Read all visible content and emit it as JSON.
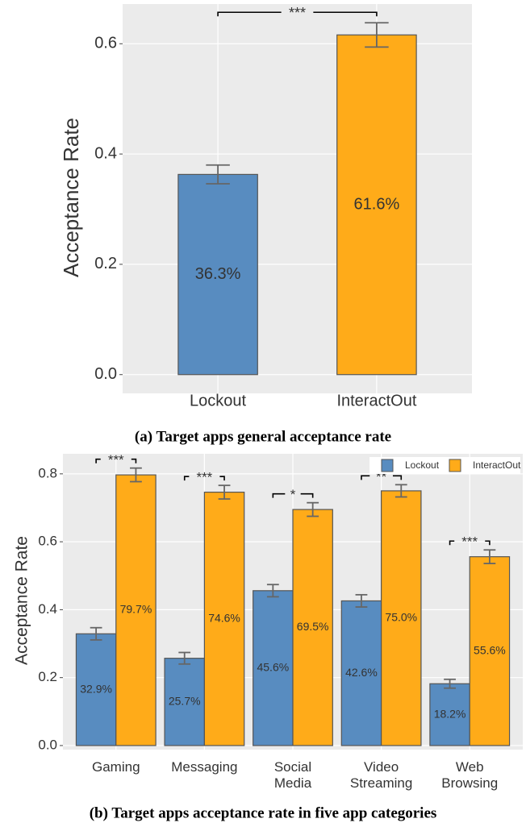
{
  "chart_data": [
    {
      "type": "bar",
      "title": "(a) Target apps general acceptance rate",
      "y_label": "Acceptance Rate",
      "categories": [
        "Lockout",
        "InteractOut"
      ],
      "values": [
        0.363,
        0.616
      ],
      "errors": [
        0.017,
        0.022
      ],
      "value_labels": [
        "36.3%",
        "61.6%"
      ],
      "colors": [
        "#588cc0",
        "#ffab19"
      ],
      "ylim": [
        -0.034,
        0.672
      ],
      "yticks": [
        {
          "value": 0,
          "label": "0.0"
        },
        0.2,
        0.4,
        0.6
      ],
      "significance": [
        "***"
      ],
      "grid": true
    },
    {
      "type": "grouped_bar",
      "title": "(b) Target apps acceptance rate in five app categories",
      "y_label": "Acceptance Rate",
      "categories": [
        "Gaming",
        "Messaging",
        "Social Media",
        "Video Streaming",
        "Web Browsing"
      ],
      "series": [
        {
          "name": "Lockout",
          "color": "#588cc0",
          "values": [
            0.329,
            0.257,
            0.456,
            0.426,
            0.182
          ],
          "errors": [
            0.018,
            0.017,
            0.018,
            0.018,
            0.013
          ],
          "value_labels": [
            "32.9%",
            "25.7%",
            "45.6%",
            "42.6%",
            "18.2%"
          ]
        },
        {
          "name": "InteractOut",
          "color": "#ffab19",
          "values": [
            0.797,
            0.746,
            0.695,
            0.75,
            0.556
          ],
          "errors": [
            0.02,
            0.02,
            0.02,
            0.018,
            0.02
          ],
          "value_labels": [
            "79.7%",
            "74.6%",
            "69.5%",
            "75.0%",
            "55.6%"
          ]
        }
      ],
      "ylim": [
        -0.012,
        0.859
      ],
      "yticks": [
        {
          "value": 0,
          "label": "0.0"
        },
        0.2,
        0.4,
        0.6,
        0.8
      ],
      "significance": [
        "***",
        "***",
        "*",
        "**",
        "***"
      ],
      "legend": "top-right",
      "grid": true
    }
  ]
}
